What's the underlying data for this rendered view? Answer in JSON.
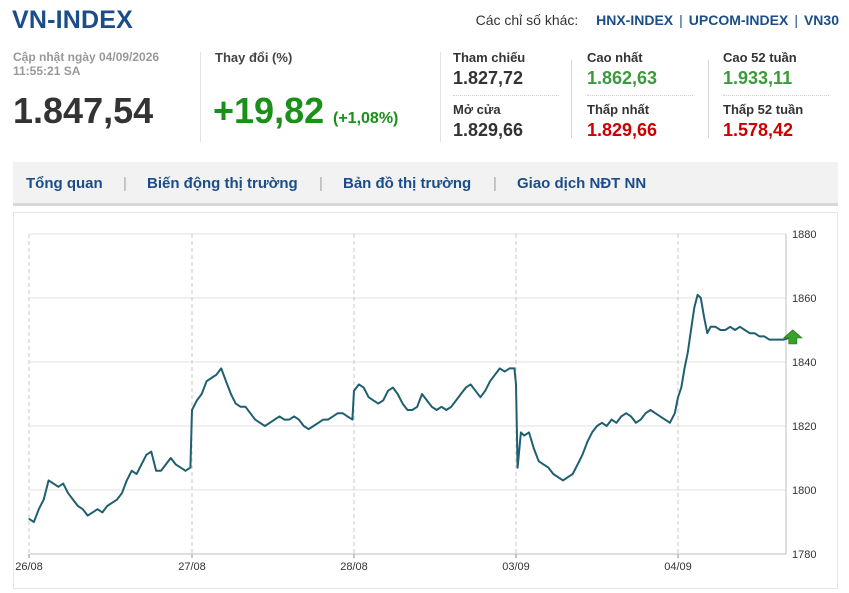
{
  "header": {
    "title": "VN-INDEX",
    "other_label": "Các chỉ số khác:",
    "other_links": [
      "HNX-INDEX",
      "UPCOM-INDEX",
      "VN30"
    ]
  },
  "quote": {
    "updated_line1": "Cập nhật ngày 04/09/2026",
    "updated_line2": "11:55:21 SA",
    "price": "1.847,54",
    "change_label": "Thay đổi (%)",
    "change": "+19,82",
    "change_pct": "(+1,08%)"
  },
  "stats": {
    "ref_label": "Tham chiếu",
    "ref_value": "1.827,72",
    "open_label": "Mở cửa",
    "open_value": "1.829,66",
    "high_label": "Cao nhất",
    "high_value": "1.862,63",
    "low_label": "Thấp nhất",
    "low_value": "1.829,66",
    "high52_label": "Cao 52 tuần",
    "high52_value": "1.933,11",
    "low52_label": "Thấp 52 tuần",
    "low52_value": "1.578,42"
  },
  "tabs": [
    "Tổng quan",
    "Biến động thị trường",
    "Bản đồ thị trường",
    "Giao dịch NĐT NN"
  ],
  "colors": {
    "brand": "#1a4e8a",
    "up": "#1a8f1a",
    "down": "#cc0000",
    "line": "#1f5f70",
    "marker": "#3aa12a"
  },
  "chart_data": {
    "type": "line",
    "title": "",
    "xlabel": "",
    "ylabel": "",
    "x_ticks": [
      "26/08",
      "27/08",
      "28/08",
      "03/09",
      "04/09"
    ],
    "y_ticks": [
      1780,
      1800,
      1820,
      1840,
      1860,
      1880
    ],
    "ylim": [
      1780,
      1880
    ],
    "grid": "vertical dashed at day boundaries",
    "last_marker": "up-arrow",
    "series": [
      {
        "name": "",
        "x": [
          0.0,
          0.03,
          0.06,
          0.09,
          0.12,
          0.15,
          0.18,
          0.21,
          0.24,
          0.27,
          0.3,
          0.33,
          0.36,
          0.39,
          0.42,
          0.45,
          0.48,
          0.51,
          0.54,
          0.57,
          0.6,
          0.63,
          0.66,
          0.69,
          0.72,
          0.75,
          0.78,
          0.81,
          0.84,
          0.87,
          0.9,
          0.93,
          0.96,
          0.99,
          1.0,
          1.03,
          1.06,
          1.09,
          1.12,
          1.15,
          1.18,
          1.21,
          1.24,
          1.27,
          1.3,
          1.33,
          1.36,
          1.39,
          1.42,
          1.45,
          1.48,
          1.51,
          1.54,
          1.57,
          1.6,
          1.63,
          1.66,
          1.69,
          1.72,
          1.75,
          1.78,
          1.81,
          1.84,
          1.87,
          1.9,
          1.93,
          1.96,
          1.99,
          2.0,
          2.03,
          2.06,
          2.09,
          2.12,
          2.15,
          2.18,
          2.21,
          2.24,
          2.27,
          2.3,
          2.33,
          2.36,
          2.39,
          2.42,
          2.45,
          2.48,
          2.51,
          2.54,
          2.57,
          2.6,
          2.63,
          2.66,
          2.69,
          2.72,
          2.75,
          2.78,
          2.81,
          2.84,
          2.87,
          2.9,
          2.93,
          2.96,
          2.99,
          3.0,
          3.01,
          3.03,
          3.05,
          3.08,
          3.11,
          3.14,
          3.17,
          3.2,
          3.23,
          3.26,
          3.29,
          3.32,
          3.35,
          3.38,
          3.41,
          3.44,
          3.47,
          3.5,
          3.53,
          3.56,
          3.59,
          3.62,
          3.65,
          3.68,
          3.71,
          3.74,
          3.77,
          3.8,
          3.83,
          3.86,
          3.89,
          3.92,
          3.95,
          3.98,
          4.0,
          4.02,
          4.04,
          4.06,
          4.08,
          4.1,
          4.12,
          4.14,
          4.16,
          4.18,
          4.2,
          4.23,
          4.26,
          4.29,
          4.32,
          4.35,
          4.38,
          4.41,
          4.44,
          4.47,
          4.5,
          4.53,
          4.56,
          4.59,
          4.62,
          4.65,
          4.68
        ],
        "values": [
          1791,
          1790,
          1794,
          1797,
          1803,
          1802,
          1801,
          1802,
          1799,
          1797,
          1795,
          1794,
          1792,
          1793,
          1794,
          1793,
          1795,
          1796,
          1797,
          1799,
          1803,
          1806,
          1805,
          1808,
          1811,
          1812,
          1806,
          1806,
          1808,
          1810,
          1808,
          1807,
          1806,
          1807,
          1825,
          1828,
          1830,
          1834,
          1835,
          1836,
          1838,
          1834,
          1830,
          1827,
          1826,
          1826,
          1824,
          1822,
          1821,
          1820,
          1821,
          1822,
          1823,
          1822,
          1822,
          1823,
          1822,
          1820,
          1819,
          1820,
          1821,
          1822,
          1822,
          1823,
          1824,
          1824,
          1823,
          1822,
          1831,
          1833,
          1832,
          1829,
          1828,
          1827,
          1828,
          1831,
          1832,
          1830,
          1827,
          1825,
          1825,
          1826,
          1830,
          1828,
          1826,
          1825,
          1826,
          1825,
          1826,
          1828,
          1830,
          1832,
          1833,
          1831,
          1829,
          1831,
          1834,
          1836,
          1838,
          1837,
          1838,
          1838,
          1833,
          1807,
          1818,
          1817,
          1818,
          1813,
          1809,
          1808,
          1807,
          1805,
          1804,
          1803,
          1804,
          1805,
          1808,
          1811,
          1815,
          1818,
          1820,
          1821,
          1820,
          1822,
          1821,
          1823,
          1824,
          1823,
          1821,
          1822,
          1824,
          1825,
          1824,
          1823,
          1822,
          1821,
          1824,
          1829,
          1832,
          1838,
          1843,
          1850,
          1857,
          1861,
          1860,
          1854,
          1849,
          1851,
          1851,
          1850,
          1850,
          1851,
          1850,
          1851,
          1850,
          1849,
          1849,
          1848,
          1848,
          1847,
          1847,
          1847,
          1847,
          1847.54
        ]
      }
    ]
  }
}
